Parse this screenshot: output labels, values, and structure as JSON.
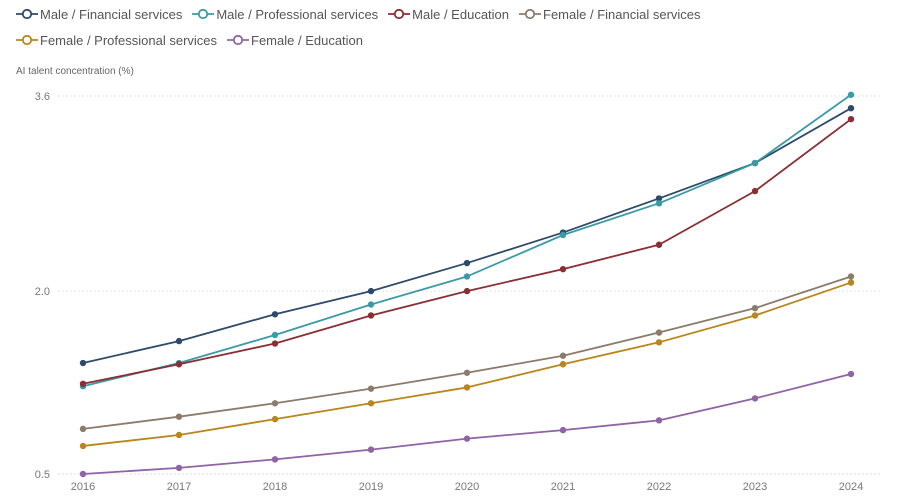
{
  "chart_data": {
    "type": "line",
    "ylabel": "AI talent concentration (%)",
    "xlabel": "",
    "ylim": [
      0.5,
      3.6
    ],
    "yticks": [
      0.5,
      2.0,
      3.6
    ],
    "ytick_labels": [
      "0.5",
      "2.0",
      "3.6"
    ],
    "x": [
      "2016",
      "2017",
      "2018",
      "2019",
      "2020",
      "2021",
      "2022",
      "2023",
      "2024"
    ],
    "grid": "horizontal dotted",
    "legend_position": "top-left",
    "series": [
      {
        "name": "Male / Financial services",
        "color": "#2e4a6b",
        "values": [
          1.41,
          1.59,
          1.81,
          2.0,
          2.23,
          2.48,
          2.76,
          3.05,
          3.5
        ]
      },
      {
        "name": "Male / Professional services",
        "color": "#3b9aa5",
        "values": [
          1.22,
          1.41,
          1.64,
          1.89,
          2.12,
          2.46,
          2.72,
          3.05,
          3.61
        ]
      },
      {
        "name": "Male / Education",
        "color": "#8b2e34",
        "values": [
          1.24,
          1.4,
          1.57,
          1.8,
          2.0,
          2.18,
          2.38,
          2.82,
          3.41
        ]
      },
      {
        "name": "Female / Financial services",
        "color": "#8c7b6b",
        "values": [
          0.87,
          0.97,
          1.08,
          1.2,
          1.33,
          1.47,
          1.66,
          1.86,
          2.12
        ]
      },
      {
        "name": "Female / Professional services",
        "color": "#b8861b",
        "values": [
          0.73,
          0.82,
          0.95,
          1.08,
          1.21,
          1.4,
          1.58,
          1.8,
          2.07
        ]
      },
      {
        "name": "Female / Education",
        "color": "#9062a6",
        "values": [
          0.5,
          0.55,
          0.62,
          0.7,
          0.79,
          0.86,
          0.94,
          1.12,
          1.32
        ]
      }
    ]
  }
}
